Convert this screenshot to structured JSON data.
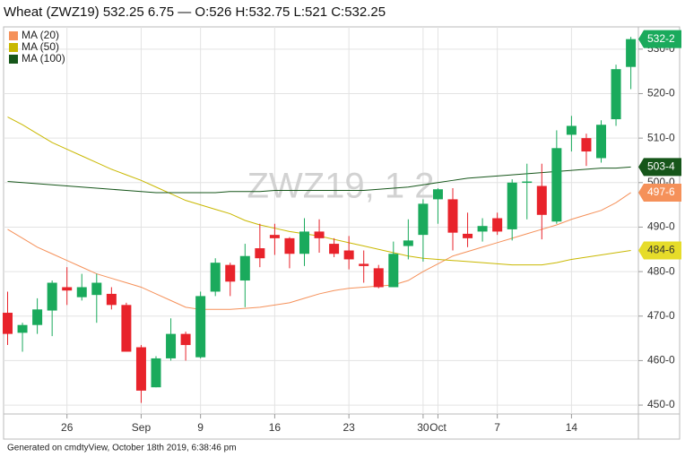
{
  "chart_data": {
    "type": "candlestick",
    "title": "Wheat (ZWZ19) 532.25 6.75 — O:526 H:532.75 L:521 C:532.25",
    "watermark": "ZWZ19, 1 2",
    "footer": "Generated on cmdtyView, October 18th 2019, 6:38:46 pm",
    "categories": [
      null,
      null,
      null,
      null,
      "26",
      null,
      null,
      null,
      null,
      "Sep",
      null,
      null,
      null,
      "9",
      null,
      null,
      null,
      null,
      "16",
      null,
      null,
      null,
      null,
      "23",
      null,
      null,
      null,
      null,
      "30",
      "Oct",
      null,
      null,
      null,
      "7",
      null,
      null,
      null,
      null,
      "14",
      null,
      null,
      null,
      null
    ],
    "open": [
      470.75,
      466.25,
      468,
      471.25,
      476.5,
      474.25,
      474.75,
      475,
      472.5,
      463,
      454,
      460.5,
      466,
      460.75,
      475.5,
      481.5,
      478,
      485.25,
      488.25,
      487.5,
      484,
      489,
      486.25,
      484.75,
      481.75,
      480.75,
      476.5,
      485.75,
      488.25,
      496.25,
      496.25,
      488.5,
      489,
      492,
      489.5,
      500,
      499.25,
      491.25,
      510.75,
      510,
      505.5,
      514.25,
      526
    ],
    "high": [
      475.5,
      468.5,
      474,
      478,
      481,
      479.5,
      479.5,
      476.5,
      473,
      463.5,
      461,
      469.5,
      466.5,
      475.5,
      483,
      482,
      486.25,
      490.75,
      490.75,
      487.75,
      492,
      491.75,
      487.5,
      488,
      484.75,
      481.5,
      486.75,
      491.75,
      496.25,
      498.75,
      498.75,
      493.25,
      492,
      493.25,
      500.75,
      504.25,
      504.25,
      511.75,
      515,
      511,
      514,
      526.5,
      532.75
    ],
    "low": [
      463.5,
      462,
      466,
      465.5,
      472.5,
      473.5,
      468.5,
      471.5,
      462,
      450.5,
      454,
      460,
      460,
      460.5,
      474.5,
      474.5,
      472,
      481,
      483.75,
      480.75,
      481.25,
      484.25,
      483.25,
      480.5,
      477.5,
      476.25,
      476.5,
      482.75,
      482.25,
      490.75,
      484.75,
      485.5,
      486.75,
      488.25,
      487,
      491.75,
      487.25,
      490.75,
      507,
      503.75,
      504.5,
      512.75,
      521
    ],
    "close": [
      466,
      468,
      471.5,
      477.5,
      475.75,
      476.5,
      477.5,
      472.5,
      462,
      453.25,
      460.5,
      466,
      463.5,
      474.5,
      482,
      477.75,
      483.5,
      483,
      487.5,
      484,
      489,
      487.5,
      484,
      482.75,
      481.25,
      476.5,
      484,
      487,
      495.25,
      498.5,
      488.75,
      487.5,
      490.25,
      489,
      500,
      500.25,
      492.75,
      507.75,
      512.75,
      507,
      513,
      525.5,
      532.25
    ],
    "up_color": "#1aaa5c",
    "down_color": "#e8232b",
    "series": [
      {
        "name": "MA (20)",
        "color": "#f5915a",
        "values": [
          489.5,
          487.5,
          485.5,
          484,
          482.5,
          481,
          479.5,
          478.5,
          477.5,
          476.5,
          475,
          473.5,
          472,
          471.5,
          471.5,
          471.5,
          471.75,
          472,
          472.5,
          473,
          474,
          475,
          475.75,
          476.25,
          476.5,
          476.75,
          477,
          478,
          480,
          481.75,
          483.5,
          484.5,
          485.5,
          486.5,
          487.5,
          488.5,
          489.5,
          490.5,
          491.75,
          492.75,
          493.75,
          495.5,
          497.75
        ]
      },
      {
        "name": "MA (50)",
        "color": "#c9b800",
        "values": [
          514.75,
          513,
          511,
          509,
          507.5,
          506,
          504.5,
          503,
          501.75,
          500.5,
          499,
          497.5,
          496,
          495,
          494,
          493,
          491.5,
          490.5,
          489.75,
          489,
          488.5,
          488,
          487.25,
          486.5,
          485.75,
          485,
          484.25,
          483.5,
          483,
          482.75,
          482.5,
          482.25,
          482,
          481.75,
          481.5,
          481.5,
          481.5,
          482,
          482.75,
          483.25,
          483.75,
          484.25,
          484.75
        ]
      },
      {
        "name": "MA (100)",
        "color": "#16561a",
        "values": [
          500.25,
          500,
          499.75,
          499.5,
          499.25,
          499,
          498.75,
          498.5,
          498.25,
          498,
          497.75,
          497.75,
          497.75,
          497.75,
          497.75,
          498,
          498,
          498,
          498.25,
          498.25,
          498.25,
          498.25,
          498.25,
          498.25,
          498.25,
          498.5,
          498.75,
          499,
          499.5,
          500,
          500.5,
          501,
          501.25,
          501.5,
          501.75,
          502,
          502.25,
          502.5,
          502.75,
          503,
          503.25,
          503.25,
          503.5
        ]
      }
    ],
    "price_labels": [
      {
        "value": 532.25,
        "label": "532-2",
        "color": "#1aaa5c",
        "text_color": "#ffffff"
      },
      {
        "value": 503.5,
        "label": "503-4",
        "color": "#16561a",
        "text_color": "#ffffff"
      },
      {
        "value": 497.75,
        "label": "497-6",
        "color": "#f5915a",
        "text_color": "#ffffff"
      },
      {
        "value": 484.75,
        "label": "484-6",
        "color": "#e6dc2a",
        "text_color": "#333333"
      }
    ],
    "ylim": [
      448,
      535
    ],
    "yticks": [
      {
        "value": 450,
        "label": "450-0"
      },
      {
        "value": 460,
        "label": "460-0"
      },
      {
        "value": 470,
        "label": "470-0"
      },
      {
        "value": 480,
        "label": "480-0"
      },
      {
        "value": 490,
        "label": "490-0"
      },
      {
        "value": 500,
        "label": "500-0"
      },
      {
        "value": 510,
        "label": "510-0"
      },
      {
        "value": 520,
        "label": "520-0"
      },
      {
        "value": 530,
        "label": "530-0"
      }
    ],
    "grid": true
  }
}
